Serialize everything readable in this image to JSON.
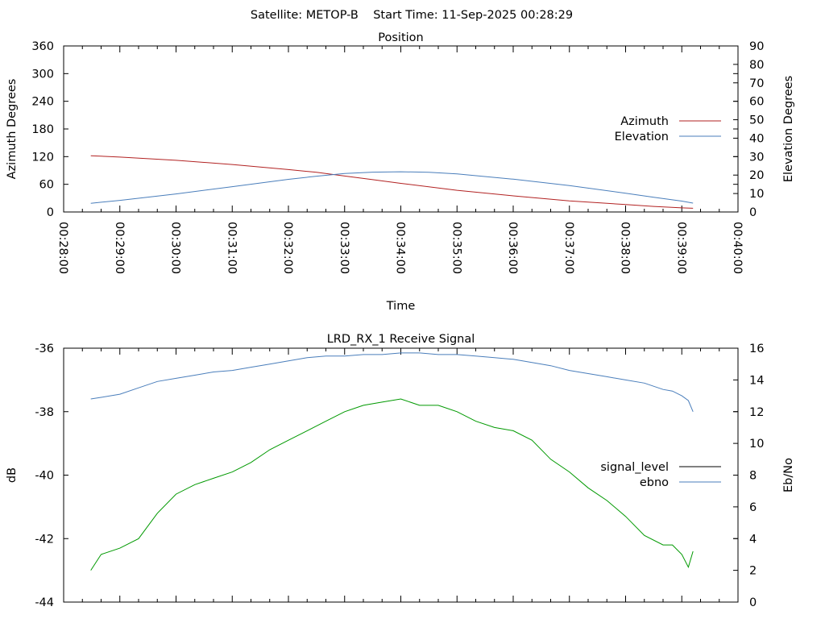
{
  "header": {
    "text": "Satellite: METOP-B    Start Time: 11-Sep-2025 00:28:29"
  },
  "chart_data": [
    {
      "type": "line",
      "title": "Position",
      "xlabel": "Time",
      "ylabel": "Azimuth Degrees",
      "y2label": "Elevation Degrees",
      "xlim": [
        "00:28:00",
        "00:40:00"
      ],
      "ylim": [
        0,
        360
      ],
      "y2lim": [
        0,
        90
      ],
      "x_ticks": [
        "00:28:00",
        "00:29:00",
        "00:30:00",
        "00:31:00",
        "00:32:00",
        "00:33:00",
        "00:34:00",
        "00:35:00",
        "00:36:00",
        "00:37:00",
        "00:38:00",
        "00:39:00",
        "00:40:00"
      ],
      "y_ticks": [
        0,
        60,
        120,
        180,
        240,
        300,
        360
      ],
      "y2_ticks": [
        0,
        10,
        20,
        30,
        40,
        50,
        60,
        70,
        80,
        90
      ],
      "legend_position": "right",
      "grid": false,
      "series": [
        {
          "name": "Azimuth",
          "axis": "y",
          "color": "#b22222",
          "x": [
            "00:28:29",
            "00:29:00",
            "00:30:00",
            "00:31:00",
            "00:32:00",
            "00:32:30",
            "00:33:00",
            "00:33:30",
            "00:34:00",
            "00:35:00",
            "00:36:00",
            "00:37:00",
            "00:38:00",
            "00:38:30",
            "00:39:00",
            "00:39:12"
          ],
          "y": [
            122,
            119,
            112,
            103,
            92,
            86,
            78,
            70,
            62,
            47,
            35,
            24,
            16,
            12,
            9,
            8
          ]
        },
        {
          "name": "Elevation",
          "axis": "y2",
          "color": "#4a7ebb",
          "x": [
            "00:28:29",
            "00:29:00",
            "00:30:00",
            "00:31:00",
            "00:32:00",
            "00:32:30",
            "00:33:00",
            "00:33:30",
            "00:34:00",
            "00:34:30",
            "00:35:00",
            "00:36:00",
            "00:37:00",
            "00:38:00",
            "00:38:30",
            "00:39:00",
            "00:39:12"
          ],
          "y": [
            4.7,
            6.3,
            9.8,
            13.7,
            17.7,
            19.4,
            20.9,
            21.6,
            21.8,
            21.5,
            20.6,
            17.8,
            14.3,
            10.2,
            8.0,
            5.9,
            4.8
          ]
        }
      ]
    },
    {
      "type": "line",
      "title": "LRD_RX_1 Receive Signal",
      "xlabel": "",
      "ylabel": "dB",
      "y2label": "Eb/No",
      "xlim": [
        "00:28:00",
        "00:40:00"
      ],
      "ylim": [
        -44,
        -36
      ],
      "y2lim": [
        0,
        16
      ],
      "y_ticks": [
        -44,
        -42,
        -40,
        -38,
        -36
      ],
      "y2_ticks": [
        0,
        2,
        4,
        6,
        8,
        10,
        12,
        14,
        16
      ],
      "legend_position": "right",
      "grid": false,
      "series": [
        {
          "name": "signal_level",
          "axis": "y",
          "color": "#009900",
          "x": [
            "00:28:29",
            "00:28:40",
            "00:29:00",
            "00:29:20",
            "00:29:40",
            "00:30:00",
            "00:30:20",
            "00:30:40",
            "00:31:00",
            "00:31:20",
            "00:31:40",
            "00:32:00",
            "00:32:20",
            "00:32:40",
            "00:33:00",
            "00:33:20",
            "00:33:40",
            "00:34:00",
            "00:34:20",
            "00:34:40",
            "00:35:00",
            "00:35:20",
            "00:35:40",
            "00:36:00",
            "00:36:20",
            "00:36:40",
            "00:37:00",
            "00:37:20",
            "00:37:40",
            "00:38:00",
            "00:38:20",
            "00:38:40",
            "00:38:50",
            "00:39:00",
            "00:39:07",
            "00:39:12"
          ],
          "y": [
            -43.0,
            -42.5,
            -42.3,
            -42.0,
            -41.2,
            -40.6,
            -40.3,
            -40.1,
            -39.9,
            -39.6,
            -39.2,
            -38.9,
            -38.6,
            -38.3,
            -38.0,
            -37.8,
            -37.7,
            -37.6,
            -37.8,
            -37.8,
            -38.0,
            -38.3,
            -38.5,
            -38.6,
            -38.9,
            -39.5,
            -39.9,
            -40.4,
            -40.8,
            -41.3,
            -41.9,
            -42.2,
            -42.2,
            -42.5,
            -42.9,
            -42.4
          ]
        },
        {
          "name": "ebno",
          "axis": "y2",
          "color": "#4a7ebb",
          "x": [
            "00:28:29",
            "00:28:40",
            "00:29:00",
            "00:29:20",
            "00:29:40",
            "00:30:00",
            "00:30:20",
            "00:30:40",
            "00:31:00",
            "00:31:20",
            "00:31:40",
            "00:32:00",
            "00:32:20",
            "00:32:40",
            "00:33:00",
            "00:33:20",
            "00:33:40",
            "00:34:00",
            "00:34:20",
            "00:34:40",
            "00:35:00",
            "00:35:20",
            "00:35:40",
            "00:36:00",
            "00:36:20",
            "00:36:40",
            "00:37:00",
            "00:37:20",
            "00:37:40",
            "00:38:00",
            "00:38:20",
            "00:38:40",
            "00:38:50",
            "00:39:00",
            "00:39:07",
            "00:39:12"
          ],
          "y": [
            12.8,
            12.9,
            13.1,
            13.5,
            13.9,
            14.1,
            14.3,
            14.5,
            14.6,
            14.8,
            15.0,
            15.2,
            15.4,
            15.5,
            15.5,
            15.6,
            15.6,
            15.7,
            15.7,
            15.6,
            15.6,
            15.5,
            15.4,
            15.3,
            15.1,
            14.9,
            14.6,
            14.4,
            14.2,
            14.0,
            13.8,
            13.4,
            13.3,
            13.0,
            12.7,
            12.0
          ]
        }
      ]
    }
  ]
}
